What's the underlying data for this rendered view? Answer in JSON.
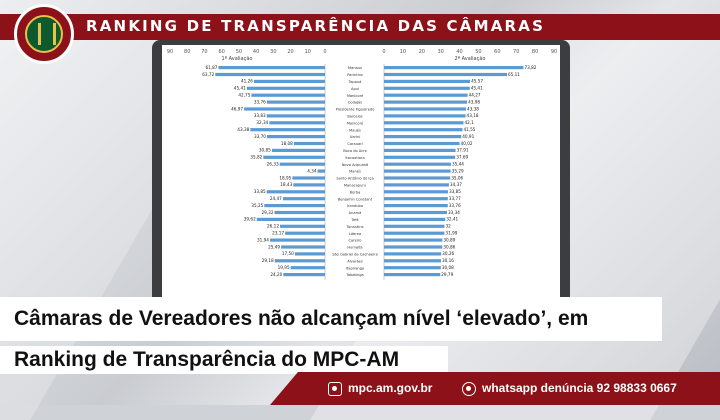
{
  "header": {
    "title": "RANKING DE TRANSPARÊNCIA DAS CÂMARAS"
  },
  "headline": {
    "line1": "Câmaras de Vereadores não alcançam nível ‘elevado’, em",
    "line2": "Ranking de Transparência do MPC-AM"
  },
  "footer": {
    "site": "mpc.am.gov.br",
    "whatsapp": "whatsapp denúncia 92 98833 0667",
    "site_icon": "globe-icon",
    "whatsapp_icon": "whatsapp-icon"
  },
  "colors": {
    "brand": "#8d1118",
    "bar": "#5b9bd5"
  },
  "chart_data": [
    {
      "type": "bar",
      "orientation": "horizontal-reversed",
      "title": "1ª Avaliação",
      "xlim": [
        0,
        90
      ],
      "ticks": [
        "90",
        "80",
        "70",
        "60",
        "50",
        "40",
        "30",
        "20",
        "10",
        "0"
      ],
      "values": [
        61.87,
        63.72,
        41.26,
        45.41,
        42.75,
        33.76,
        46.97,
        33.83,
        32.34,
        43.38,
        33.7,
        18.08,
        30.85,
        35.82,
        26.33,
        4.34,
        18.95,
        18.43,
        33.85,
        24.47,
        35.25,
        29.32,
        39.62,
        26.12,
        23.17,
        31.94,
        25.49,
        17.5,
        29.18,
        19.95,
        24.2
      ],
      "labels": [
        "61,87",
        "63,72",
        "41,26",
        "45,41",
        "42,75",
        "33,76",
        "46,97",
        "33,83",
        "32,34",
        "43,38",
        "33,70",
        "18,08",
        "30,85",
        "35,82",
        "26,33",
        "4,34",
        "18,95",
        "18,43",
        "33,85",
        "24,47",
        "35,25",
        "29,32",
        "39,62",
        "26,12",
        "23,17",
        "31,94",
        "25,49",
        "17,50",
        "29,18",
        "19,95",
        "24,20"
      ]
    },
    {
      "type": "bar",
      "orientation": "horizontal",
      "title": "2ª Avaliação",
      "xlim": [
        0,
        90
      ],
      "ticks": [
        "0",
        "10",
        "20",
        "30",
        "40",
        "50",
        "60",
        "70",
        "80",
        "90"
      ],
      "categories": [
        "Manaus",
        "Parintins",
        "Tapauá",
        "Apuí",
        "Manicoré",
        "Codajás",
        "Presidente Figueiredo",
        "Barcelos",
        "Manicoré",
        "Maués",
        "Uarini",
        "Carauari",
        "Boca do Acre",
        "Itacoatiara",
        "Nova Aripuanã",
        "Manés",
        "Santo Antônio do Içá",
        "Manacapuru",
        "Borba",
        "Benjamin Constant",
        "Iranduba",
        "Anamã",
        "Tefé",
        "Tonantins",
        "Lábrea",
        "Careiro",
        "Humaitá",
        "São Gabriel da Cachoeira",
        "Alvarães",
        "Itapiranga",
        "Tabatinga"
      ],
      "values": [
        73.82,
        65.11,
        45.57,
        45.41,
        44.27,
        43.98,
        43.38,
        43.18,
        42.1,
        41.55,
        40.91,
        40.02,
        37.91,
        37.69,
        35.44,
        35.29,
        35.06,
        34.37,
        33.85,
        33.77,
        33.76,
        33.34,
        32.41,
        32,
        31.99,
        30.89,
        30.86,
        30.26,
        30.16,
        30.08,
        29.79
      ],
      "labels": [
        "73,82",
        "65,11",
        "45,57",
        "45,41",
        "44,27",
        "43,98",
        "43,38",
        "43,18",
        "42,1",
        "41,55",
        "40,91",
        "40,02",
        "37,91",
        "37,69",
        "35,44",
        "35,29",
        "35,06",
        "34,37",
        "33,85",
        "33,77",
        "33,76",
        "33,34",
        "32,41",
        "32",
        "31,99",
        "30,89",
        "30,86",
        "30,26",
        "30,16",
        "30,08",
        "29,79"
      ]
    }
  ]
}
